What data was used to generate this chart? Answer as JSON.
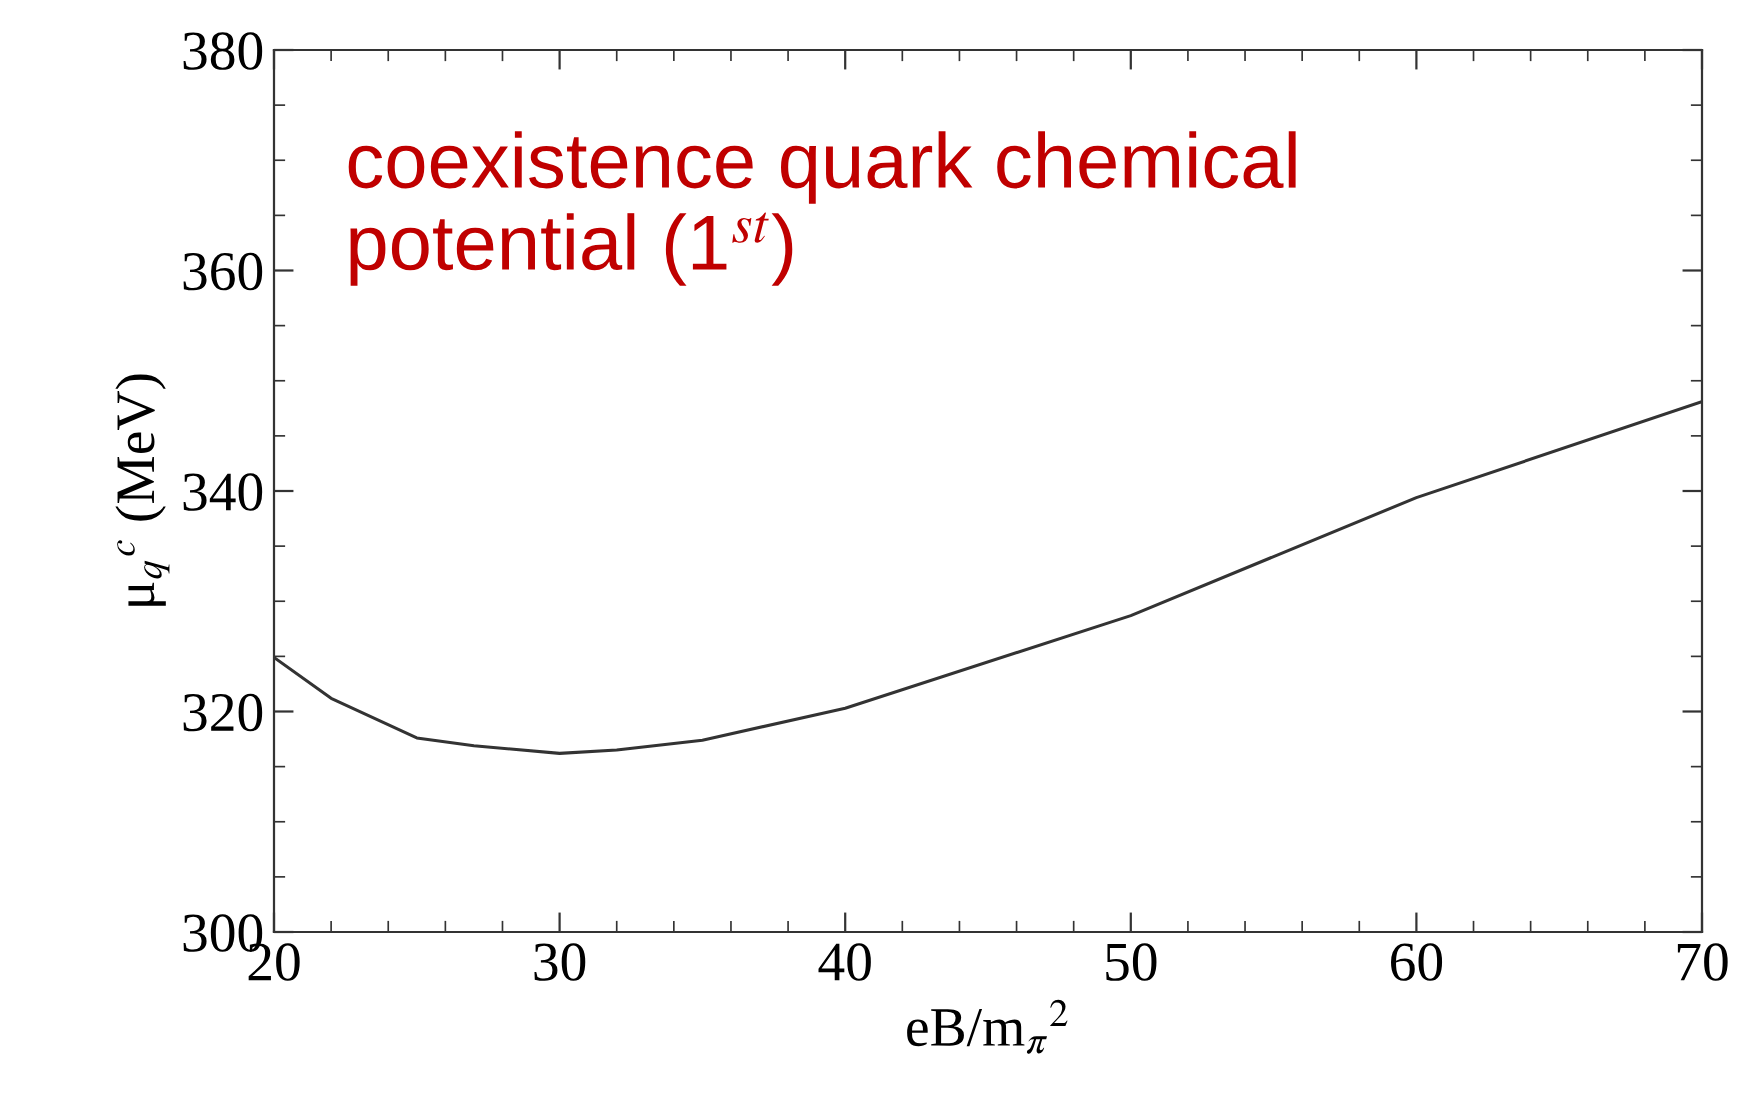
{
  "chart_data": {
    "type": "line",
    "xlabel": "eB/m$_{π}$$^{2}$",
    "ylabel": "μ$_{q}$$^{c}$ (MeV)",
    "annotations": [
      "coexistence quark chemical\npotential (1$^{st}$)"
    ],
    "x": [
      20,
      22,
      25,
      27,
      30,
      32,
      35,
      40,
      50,
      60,
      70
    ],
    "series": [
      {
        "color": "#333333",
        "values": [
          324.9,
          321.2,
          317.6,
          316.9,
          316.2,
          316.5,
          317.4,
          320.3,
          328.7,
          339.4,
          348.1
        ]
      }
    ],
    "xlim": [
      20,
      70
    ],
    "ylim": [
      300,
      380
    ],
    "xticks": [
      20,
      30,
      40,
      50,
      60,
      70
    ],
    "yticks": [
      300,
      320,
      340,
      360,
      380
    ],
    "marker": "none",
    "line_style": "solid"
  }
}
